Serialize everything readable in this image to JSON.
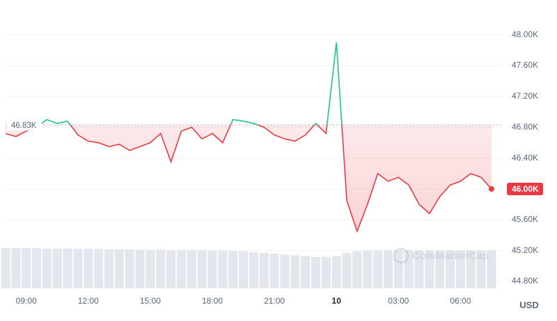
{
  "chart_data": {
    "type": "line",
    "categories": [
      null,
      null,
      "09:00",
      null,
      null,
      null,
      null,
      null,
      "12:00",
      null,
      null,
      null,
      null,
      null,
      "15:00",
      null,
      null,
      null,
      null,
      null,
      "18:00",
      null,
      null,
      null,
      null,
      null,
      "21:00",
      null,
      null,
      null,
      null,
      null,
      "10",
      null,
      null,
      null,
      null,
      null,
      "03:00",
      null,
      null,
      null,
      null,
      null,
      "06:00",
      null,
      null,
      null
    ],
    "values": [
      46720,
      46680,
      46750,
      46800,
      46900,
      46850,
      46880,
      46700,
      46620,
      46600,
      46550,
      46580,
      46500,
      46550,
      46600,
      46720,
      46350,
      46750,
      46800,
      46650,
      46720,
      46600,
      46900,
      46880,
      46850,
      46800,
      46700,
      46650,
      46620,
      46700,
      46850,
      46720,
      47900,
      45850,
      45450,
      45800,
      46200,
      46100,
      46150,
      46050,
      45800,
      45680,
      45900,
      46050,
      46100,
      46200,
      46150,
      46000
    ],
    "volume": [
      100,
      100,
      100,
      100,
      99,
      99,
      99,
      98,
      98,
      98,
      97,
      97,
      97,
      96,
      96,
      96,
      95,
      95,
      95,
      95,
      94,
      94,
      93,
      92,
      90,
      88,
      86,
      84,
      82,
      80,
      78,
      78,
      80,
      88,
      92,
      94,
      95,
      95,
      95,
      95,
      95,
      95,
      95,
      95,
      95,
      95,
      95,
      95
    ],
    "color_up": "#16c784",
    "color_down": "#ea3943",
    "volume_color": "#e3e6ec",
    "baseline": {
      "value": 46830,
      "label": "46.83K"
    },
    "last_label": {
      "value": 46000,
      "label": "46.00K"
    },
    "currency": "USD",
    "watermark": "CoinMarketCap",
    "ylim": [
      44620,
      48290
    ],
    "yticks": [
      {
        "value": 44800,
        "label": "44.80K"
      },
      {
        "value": 45200,
        "label": "45.20K"
      },
      {
        "value": 45600,
        "label": "45.60K"
      },
      {
        "value": 46000,
        "label": "46.00K"
      },
      {
        "value": 46400,
        "label": "46.40K"
      },
      {
        "value": 46800,
        "label": "46.80K"
      },
      {
        "value": 47200,
        "label": "47.20K"
      },
      {
        "value": 47600,
        "label": "47.60K"
      },
      {
        "value": 48000,
        "label": "48.00K"
      }
    ],
    "grid": true
  }
}
